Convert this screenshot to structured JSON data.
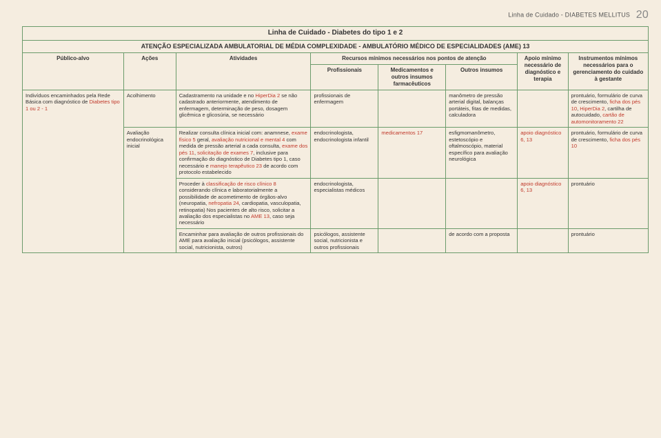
{
  "colors": {
    "border": "#6a9a6a",
    "bg": "#f5ede0",
    "highlight": "#c0392b",
    "text": "#333"
  },
  "pageHeader": {
    "breadcrumb": "Linha de Cuidado - DIABETES MELLITUS",
    "pageNumber": "20"
  },
  "titleRow": "Linha de Cuidado - Diabetes do tipo 1 e 2",
  "subtitleRow": "ATENÇÃO ESPECIALIZADA AMBULATORIAL DE MÉDIA COMPLEXIDADE - AMBULATÓRIO MÉDICO DE ESPECIALIDADES (AME) 13",
  "headers": {
    "publico": "Público-alvo",
    "acoes": "Ações",
    "atividades": "Atividades",
    "recursos": "Recursos mínimos necessários nos pontos de atenção",
    "apoio": "Apoio mínimo necessário de diagnóstico e terapia",
    "instrumentos": "Instrumentos mínimos necessários para o gerenciamento do cuidado à gestante",
    "profissionais": "Profissionais",
    "medicamentos": "Medicamentos e outros insumos farmacêuticos",
    "outros": "Outros insumos"
  },
  "rows": [
    {
      "publico": [
        {
          "t": "Indivíduos encaminhados pela Rede Básica com diagnóstico de "
        },
        {
          "t": "Diabetes tipo 1 ou 2 - 1",
          "hl": true
        }
      ],
      "acoes": [
        {
          "t": "Acolhimento"
        }
      ],
      "atividades": [
        {
          "t": "Cadastramento na unidade e no "
        },
        {
          "t": "HiperDia 2",
          "hl": true
        },
        {
          "t": " se não cadastrado anteriormente, atendimento de enfermagem, determinação de peso, dosagem glicêmica e glicosúria, se necessário"
        }
      ],
      "prof": [
        {
          "t": "profissionais de enfermagem"
        }
      ],
      "med": [],
      "outros": [
        {
          "t": "manômetro de pressão arterial digital, balanças portáteis, fitas de medidas, calculadora"
        }
      ],
      "apoio": [],
      "instr": [
        {
          "t": "prontuário, formulário de curva de crescimento, "
        },
        {
          "t": "ficha dos pés 10",
          "hl": true
        },
        {
          "t": ", "
        },
        {
          "t": "HiperDia 2",
          "hl": true
        },
        {
          "t": ", cartilha de autocuidado, "
        },
        {
          "t": "cartão de automonitoramento 22",
          "hl": true
        }
      ]
    },
    {
      "publico": null,
      "acoes": [
        {
          "t": "Avaliação endocrinológica inicial"
        }
      ],
      "atividades": [
        {
          "t": "Realizar consulta clínica inicial com: anamnese, "
        },
        {
          "t": "exame físico 5",
          "hl": true
        },
        {
          "t": " geral, "
        },
        {
          "t": "avaliação nutricional e mental 4",
          "hl": true
        },
        {
          "t": " com medida de pressão arterial a cada consulta, "
        },
        {
          "t": "exame dos pés 11",
          "hl": true
        },
        {
          "t": ", "
        },
        {
          "t": "solicitação de exames 7",
          "hl": true
        },
        {
          "t": ", inclusive para confirmação do diagnóstico de Diabetes tipo 1, caso necessário e "
        },
        {
          "t": "manejo terapêutico 23",
          "hl": true
        },
        {
          "t": " de acordo com protocolo estabelecido"
        }
      ],
      "prof": [
        {
          "t": "endocrinologista, endocrinologista infantil"
        }
      ],
      "med": [
        {
          "t": "medicamentos 17",
          "hl": true
        }
      ],
      "outros": [
        {
          "t": "esfigmomanômetro, estetoscópio e oftalmoscópio, material específico para avaliação neurológica"
        }
      ],
      "apoio": [
        {
          "t": "apoio diagnóstico 6, 13",
          "hl": true
        }
      ],
      "instr": [
        {
          "t": "prontuário, formulário de curva de crescimento, "
        },
        {
          "t": "ficha dos pés 10",
          "hl": true
        }
      ]
    },
    {
      "publico": null,
      "acoes": null,
      "atividades": [
        {
          "t": "Proceder à "
        },
        {
          "t": "classificação de risco clínico 8",
          "hl": true
        },
        {
          "t": " considerando clínica e laboratorialmente a possibilidade de acometimento de órgãos-alvo (neuropatia, "
        },
        {
          "t": "nefropatia 24",
          "hl": true
        },
        {
          "t": ", cardiopatia, vasculopatia, retinopatia) Nos pacientes de alto risco, solicitar a avaliação dos especialistas no "
        },
        {
          "t": "AME 13",
          "hl": true
        },
        {
          "t": ", caso seja necessário"
        }
      ],
      "prof": [
        {
          "t": "endocrinologista, especialistas médicos"
        }
      ],
      "med": [],
      "outros": [],
      "apoio": [
        {
          "t": "apoio diagnóstico 6, 13",
          "hl": true
        }
      ],
      "instr": [
        {
          "t": "prontuário"
        }
      ]
    },
    {
      "publico": null,
      "acoes": null,
      "atividades": [
        {
          "t": "Encaminhar para avaliação de outros profissionais do AME para avaliação inicial (psicólogos, assistente social, nutricionista, outros)"
        }
      ],
      "prof": [
        {
          "t": "psicólogos, assistente social, nutricionista e outros profissionais"
        }
      ],
      "med": [],
      "outros": [
        {
          "t": "de acordo com a proposta"
        }
      ],
      "apoio": [],
      "instr": [
        {
          "t": "prontuário"
        }
      ]
    }
  ]
}
